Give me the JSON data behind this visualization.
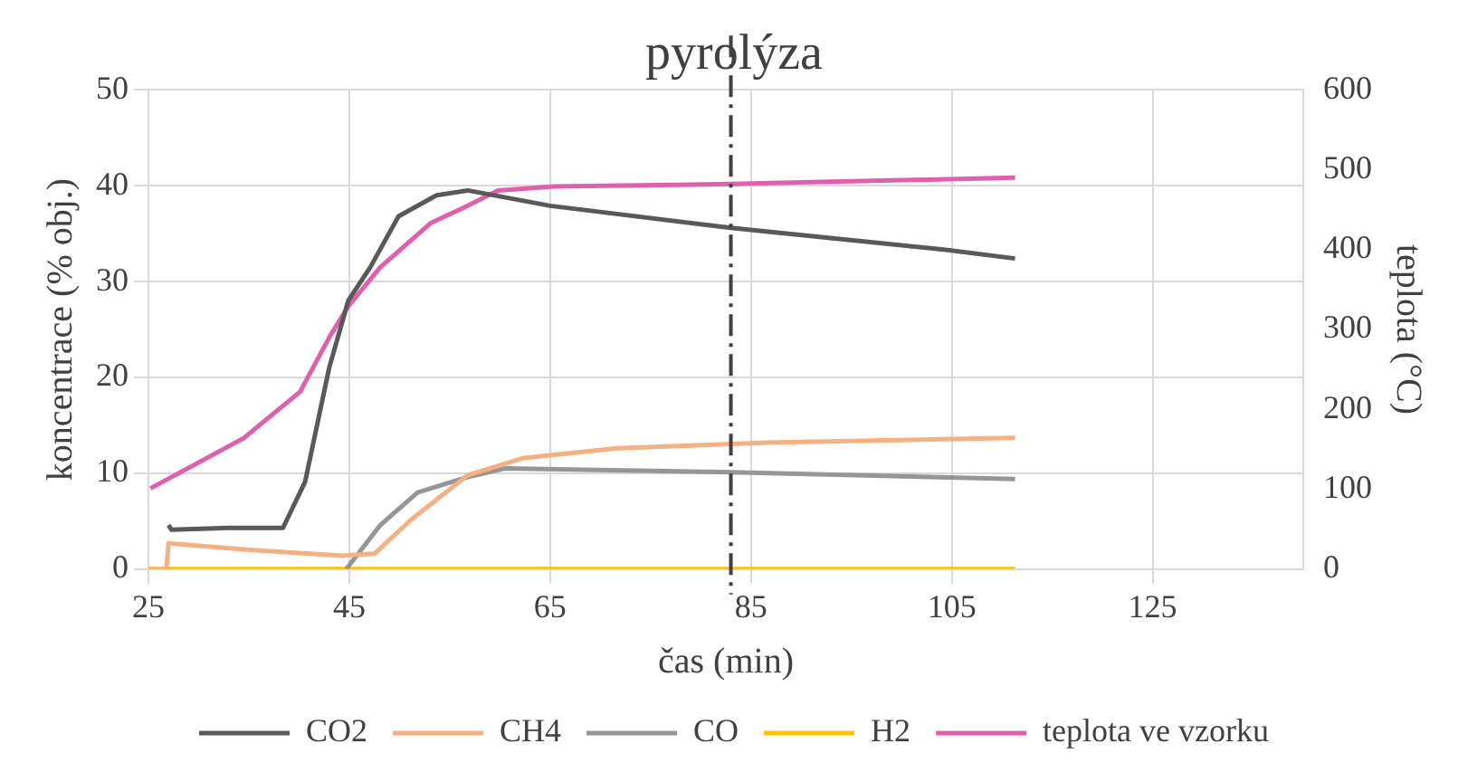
{
  "chart_data": {
    "type": "line",
    "title": "pyrolýza",
    "xlabel": "čas (min)",
    "ylabel": "koncentrace (% obj.)",
    "y2label": "teplota (°C)",
    "xlim": [
      25,
      140
    ],
    "xticks": [
      25,
      45,
      65,
      85,
      105,
      125
    ],
    "ylim": [
      0,
      50
    ],
    "yticks": [
      0,
      10,
      20,
      30,
      40,
      50
    ],
    "y2lim": [
      0,
      600
    ],
    "y2ticks": [
      0,
      100,
      200,
      300,
      400,
      500,
      600
    ],
    "grid": true,
    "legend": "bottom",
    "marker": "none",
    "line_style": "solid",
    "ref_lines": [
      {
        "axis": "x",
        "value": 83,
        "color": "#404040",
        "line_style": "dashed"
      }
    ],
    "series": [
      {
        "name": "CO2",
        "color": "#595959",
        "x": [
          27,
          27.3,
          33,
          38.4,
          40.6,
          43,
          44.9,
          47.1,
          49.9,
          53.7,
          56.8,
          65,
          83,
          104.4,
          111.3
        ],
        "values": [
          4.6,
          4.1,
          4.3,
          4.3,
          9.1,
          21,
          28,
          31.5,
          36.8,
          39,
          39.5,
          37.9,
          35.6,
          33.3,
          32.4
        ]
      },
      {
        "name": "CH4",
        "color": "#f4b183",
        "x": [
          25,
          26.8,
          27,
          35,
          44.3,
          47.5,
          51.2,
          56.8,
          62.4,
          71.7,
          86.6,
          111.3
        ],
        "values": [
          0,
          0,
          2.7,
          2,
          1.4,
          1.6,
          5.2,
          9.8,
          11.6,
          12.6,
          13.2,
          13.7
        ]
      },
      {
        "name": "CO",
        "color": "#969696",
        "x": [
          44.7,
          48.1,
          51.8,
          56.8,
          60.5,
          83,
          111.3
        ],
        "values": [
          0,
          4.6,
          8,
          9.6,
          10.5,
          10.1,
          9.4
        ]
      },
      {
        "name": "H2",
        "color": "#ffc000",
        "x": [
          25,
          111.3
        ],
        "values": [
          0,
          0
        ]
      },
      {
        "name": "teplota ve vzorku",
        "color": "#e060b0",
        "axis": "y2",
        "x": [
          25.2,
          34.5,
          40.1,
          43,
          44.9,
          48.1,
          53.1,
          56.8,
          59.8,
          65.4,
          83,
          111.3
        ],
        "values": [
          101,
          164,
          222,
          290,
          329,
          378,
          433,
          455,
          474,
          479,
          482,
          490
        ]
      }
    ]
  }
}
